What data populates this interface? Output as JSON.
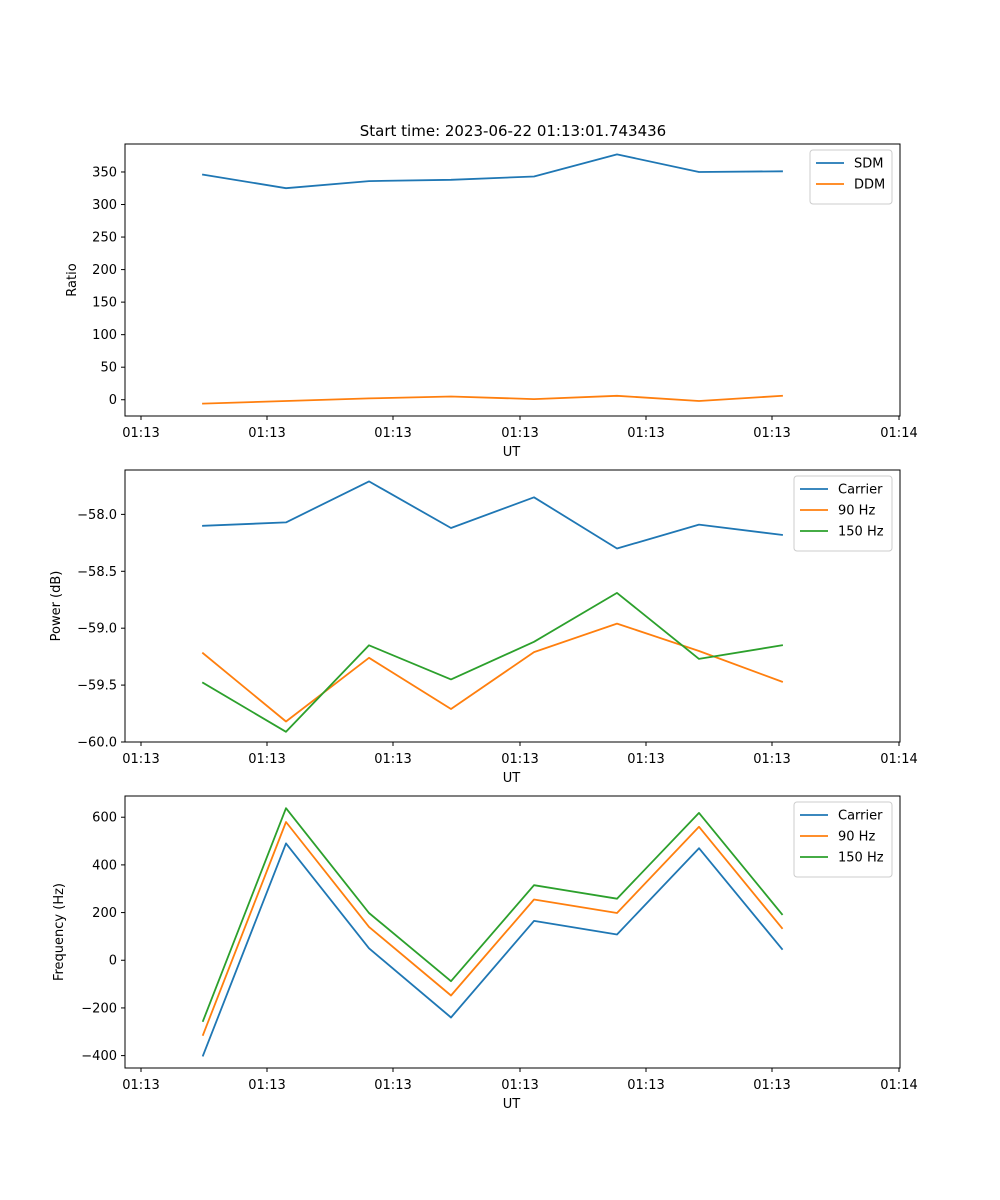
{
  "figure_title": "Start time: 2023-06-22 01:13:01.743436",
  "colors": {
    "blue": "#1f77b4",
    "orange": "#ff7f0e",
    "green": "#2ca02c"
  },
  "chart_data": [
    {
      "type": "line",
      "title": "Start time: 2023-06-22 01:13:01.743436",
      "xlabel": "UT",
      "ylabel": "Ratio",
      "x_tick_labels": [
        "01:13",
        "01:13",
        "01:13",
        "01:13",
        "01:13",
        "01:13",
        "01:13"
      ],
      "x_tick_label_last": "01:14",
      "y_ticks": [
        0,
        50,
        100,
        150,
        200,
        250,
        300,
        350
      ],
      "ylim": [
        -25,
        393
      ],
      "legend_position": "top-right",
      "grid": false,
      "series": [
        {
          "name": "SDM",
          "color": "#1f77b4",
          "values": [
            346,
            325,
            336,
            338,
            343,
            377,
            350,
            351
          ]
        },
        {
          "name": "DDM",
          "color": "#ff7f0e",
          "values": [
            -6,
            -2,
            2,
            5,
            1,
            6,
            -2,
            6
          ]
        }
      ]
    },
    {
      "type": "line",
      "xlabel": "UT",
      "ylabel": "Power (dB)",
      "x_tick_labels": [
        "01:13",
        "01:13",
        "01:13",
        "01:13",
        "01:13",
        "01:13",
        "01:13"
      ],
      "x_tick_label_last": "01:14",
      "y_ticks": [
        -60.0,
        -59.5,
        -59.0,
        -58.5,
        -58.0
      ],
      "y_tick_labels": [
        "−60.0",
        "−59.5",
        "−59.0",
        "−58.5",
        "−58.0"
      ],
      "ylim": [
        -60.0,
        -57.61
      ],
      "legend_position": "top-right",
      "grid": false,
      "series": [
        {
          "name": "Carrier",
          "color": "#1f77b4",
          "values": [
            -58.1,
            -58.07,
            -57.71,
            -58.12,
            -57.85,
            -58.3,
            -58.09,
            -58.18
          ]
        },
        {
          "name": "90 Hz",
          "color": "#ff7f0e",
          "values": [
            -59.22,
            -59.82,
            -59.26,
            -59.71,
            -59.21,
            -58.96,
            -59.2,
            -59.47
          ]
        },
        {
          "name": "150 Hz",
          "color": "#2ca02c",
          "values": [
            -59.48,
            -59.91,
            -59.15,
            -59.45,
            -59.12,
            -58.69,
            -59.27,
            -59.15
          ]
        }
      ]
    },
    {
      "type": "line",
      "xlabel": "UT",
      "ylabel": "Frequency (Hz)",
      "x_tick_labels": [
        "01:13",
        "01:13",
        "01:13",
        "01:13",
        "01:13",
        "01:13",
        "01:13"
      ],
      "x_tick_label_last": "01:14",
      "y_ticks": [
        -400,
        -200,
        0,
        200,
        400,
        600
      ],
      "y_tick_labels": [
        "−400",
        "−200",
        "0",
        "200",
        "400",
        "600"
      ],
      "ylim": [
        -452,
        689
      ],
      "legend_position": "top-right",
      "grid": false,
      "series": [
        {
          "name": "Carrier",
          "color": "#1f77b4",
          "values": [
            -400,
            490,
            50,
            -240,
            165,
            108,
            470,
            47
          ]
        },
        {
          "name": "90 Hz",
          "color": "#ff7f0e",
          "values": [
            -313,
            580,
            140,
            -148,
            255,
            198,
            560,
            135
          ]
        },
        {
          "name": "150 Hz",
          "color": "#2ca02c",
          "values": [
            -255,
            638,
            198,
            -88,
            315,
            258,
            618,
            193
          ]
        }
      ]
    }
  ]
}
